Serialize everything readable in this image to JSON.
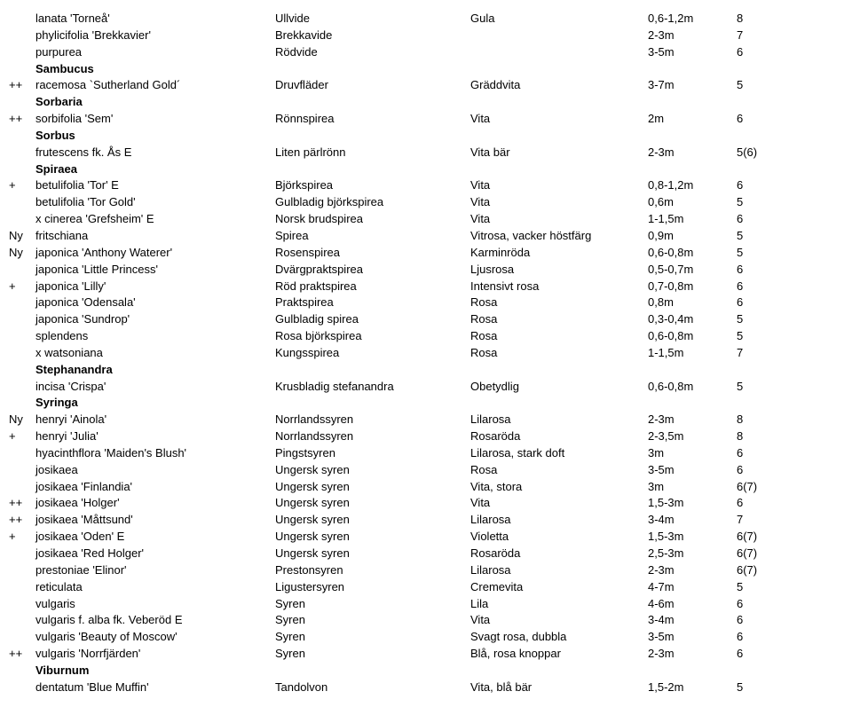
{
  "rows": [
    {
      "prefix": "",
      "name": "lanata 'Torneå'",
      "swedish": "Ullvide",
      "desc": "Gula",
      "range": "0,6-1,2m",
      "rating": "8",
      "bold": false
    },
    {
      "prefix": "",
      "name": "phylicifolia 'Brekkavier'",
      "swedish": "Brekkavide",
      "desc": "",
      "range": "2-3m",
      "rating": "7",
      "bold": false
    },
    {
      "prefix": "",
      "name": "purpurea",
      "swedish": "Rödvide",
      "desc": "",
      "range": "3-5m",
      "rating": "6",
      "bold": false
    },
    {
      "prefix": "",
      "name": "Sambucus",
      "swedish": "",
      "desc": "",
      "range": "",
      "rating": "",
      "bold": true
    },
    {
      "prefix": "++",
      "name": "racemosa `Sutherland Gold´",
      "swedish": "Druvfläder",
      "desc": "Gräddvita",
      "range": "3-7m",
      "rating": "5",
      "bold": false
    },
    {
      "prefix": "",
      "name": "Sorbaria",
      "swedish": "",
      "desc": "",
      "range": "",
      "rating": "",
      "bold": true
    },
    {
      "prefix": "++",
      "name": "sorbifolia 'Sem'",
      "swedish": "Rönnspirea",
      "desc": "Vita",
      "range": "2m",
      "rating": "6",
      "bold": false
    },
    {
      "prefix": "",
      "name": "Sorbus",
      "swedish": "",
      "desc": "",
      "range": "",
      "rating": "",
      "bold": true
    },
    {
      "prefix": "",
      "name": "frutescens fk. Ås E",
      "swedish": "Liten pärlrönn",
      "desc": "Vita bär",
      "range": "2-3m",
      "rating": "5(6)",
      "bold": false
    },
    {
      "prefix": "",
      "name": "Spiraea",
      "swedish": "",
      "desc": "",
      "range": "",
      "rating": "",
      "bold": true
    },
    {
      "prefix": "+",
      "name": "betulifolia 'Tor' E",
      "swedish": "Björkspirea",
      "desc": "Vita",
      "range": "0,8-1,2m",
      "rating": "6",
      "bold": false
    },
    {
      "prefix": "",
      "name": "betulifolia 'Tor Gold'",
      "swedish": "Gulbladig björkspirea",
      "desc": "Vita",
      "range": "0,6m",
      "rating": "5",
      "bold": false
    },
    {
      "prefix": "",
      "name": "x cinerea 'Grefsheim' E",
      "swedish": "Norsk brudspirea",
      "desc": "Vita",
      "range": "1-1,5m",
      "rating": "6",
      "bold": false
    },
    {
      "prefix": "Ny",
      "name": "fritschiana",
      "swedish": "Spirea",
      "desc": "Vitrosa, vacker höstfärg",
      "range": "0,9m",
      "rating": "5",
      "bold": false
    },
    {
      "prefix": "Ny",
      "name": "japonica 'Anthony Waterer'",
      "swedish": "Rosenspirea",
      "desc": "Karminröda",
      "range": "0,6-0,8m",
      "rating": "5",
      "bold": false
    },
    {
      "prefix": "",
      "name": "japonica 'Little Princess'",
      "swedish": "Dvärgpraktspirea",
      "desc": "Ljusrosa",
      "range": "0,5-0,7m",
      "rating": "6",
      "bold": false
    },
    {
      "prefix": "+",
      "name": "japonica 'Lilly'",
      "swedish": "Röd praktspirea",
      "desc": "Intensivt rosa",
      "range": "0,7-0,8m",
      "rating": "6",
      "bold": false
    },
    {
      "prefix": "",
      "name": "japonica 'Odensala'",
      "swedish": "Praktspirea",
      "desc": "Rosa",
      "range": "0,8m",
      "rating": "6",
      "bold": false
    },
    {
      "prefix": "",
      "name": "japonica 'Sundrop'",
      "swedish": "Gulbladig spirea",
      "desc": "Rosa",
      "range": "0,3-0,4m",
      "rating": "5",
      "bold": false
    },
    {
      "prefix": "",
      "name": "splendens",
      "swedish": "Rosa björkspirea",
      "desc": "Rosa",
      "range": "0,6-0,8m",
      "rating": "5",
      "bold": false
    },
    {
      "prefix": "",
      "name": "x watsoniana",
      "swedish": "Kungsspirea",
      "desc": "Rosa",
      "range": "1-1,5m",
      "rating": "7",
      "bold": false
    },
    {
      "prefix": "",
      "name": "Stephanandra",
      "swedish": "",
      "desc": "",
      "range": "",
      "rating": "",
      "bold": true
    },
    {
      "prefix": "",
      "name": "incisa 'Crispa'",
      "swedish": "Krusbladig stefanandra",
      "desc": "Obetydlig",
      "range": "0,6-0,8m",
      "rating": "5",
      "bold": false
    },
    {
      "prefix": "",
      "name": "Syringa",
      "swedish": "",
      "desc": "",
      "range": "",
      "rating": "",
      "bold": true
    },
    {
      "prefix": "Ny",
      "name": "henryi 'Ainola'",
      "swedish": "Norrlandssyren",
      "desc": "Lilarosa",
      "range": "2-3m",
      "rating": "8",
      "bold": false
    },
    {
      "prefix": "+",
      "name": "henryi 'Julia'",
      "swedish": "Norrlandssyren",
      "desc": "Rosaröda",
      "range": "2-3,5m",
      "rating": "8",
      "bold": false
    },
    {
      "prefix": "",
      "name": "hyacinthflora 'Maiden's Blush'",
      "swedish": "Pingstsyren",
      "desc": "Lilarosa, stark doft",
      "range": "3m",
      "rating": "6",
      "bold": false
    },
    {
      "prefix": "",
      "name": "josikaea",
      "swedish": "Ungersk syren",
      "desc": "Rosa",
      "range": "3-5m",
      "rating": "6",
      "bold": false
    },
    {
      "prefix": "",
      "name": "josikaea 'Finlandia'",
      "swedish": "Ungersk syren",
      "desc": "Vita, stora",
      "range": "3m",
      "rating": "6(7)",
      "bold": false
    },
    {
      "prefix": "++",
      "name": "josikaea 'Holger'",
      "swedish": "Ungersk syren",
      "desc": "Vita",
      "range": "1,5-3m",
      "rating": "6",
      "bold": false
    },
    {
      "prefix": "++",
      "name": "josikaea 'Måttsund'",
      "swedish": "Ungersk syren",
      "desc": "Lilarosa",
      "range": "3-4m",
      "rating": "7",
      "bold": false
    },
    {
      "prefix": "+",
      "name": "josikaea 'Oden' E",
      "swedish": "Ungersk syren",
      "desc": "Violetta",
      "range": "1,5-3m",
      "rating": "6(7)",
      "bold": false
    },
    {
      "prefix": "",
      "name": "josikaea 'Red Holger'",
      "swedish": "Ungersk syren",
      "desc": "Rosaröda",
      "range": "2,5-3m",
      "rating": "6(7)",
      "bold": false
    },
    {
      "prefix": "",
      "name": "prestoniae 'Elinor'",
      "swedish": "Prestonsyren",
      "desc": "Lilarosa",
      "range": "2-3m",
      "rating": "6(7)",
      "bold": false
    },
    {
      "prefix": "",
      "name": "reticulata",
      "swedish": "Ligustersyren",
      "desc": "Cremevita",
      "range": "4-7m",
      "rating": "5",
      "bold": false
    },
    {
      "prefix": "",
      "name": "vulgaris",
      "swedish": "Syren",
      "desc": "Lila",
      "range": "4-6m",
      "rating": "6",
      "bold": false
    },
    {
      "prefix": "",
      "name": "vulgaris f. alba fk. Veberöd E",
      "swedish": "Syren",
      "desc": "Vita",
      "range": "3-4m",
      "rating": "6",
      "bold": false
    },
    {
      "prefix": "",
      "name": "vulgaris 'Beauty of Moscow'",
      "swedish": "Syren",
      "desc": "Svagt rosa, dubbla",
      "range": "3-5m",
      "rating": "6",
      "bold": false
    },
    {
      "prefix": "++",
      "name": "vulgaris 'Norrfjärden'",
      "swedish": "Syren",
      "desc": "Blå, rosa knoppar",
      "range": "2-3m",
      "rating": "6",
      "bold": false
    },
    {
      "prefix": "",
      "name": "Viburnum",
      "swedish": "",
      "desc": "",
      "range": "",
      "rating": "",
      "bold": true
    },
    {
      "prefix": "",
      "name": "dentatum 'Blue Muffin'",
      "swedish": "Tandolvon",
      "desc": "Vita, blå bär",
      "range": "1,5-2m",
      "rating": "5",
      "bold": false
    }
  ]
}
